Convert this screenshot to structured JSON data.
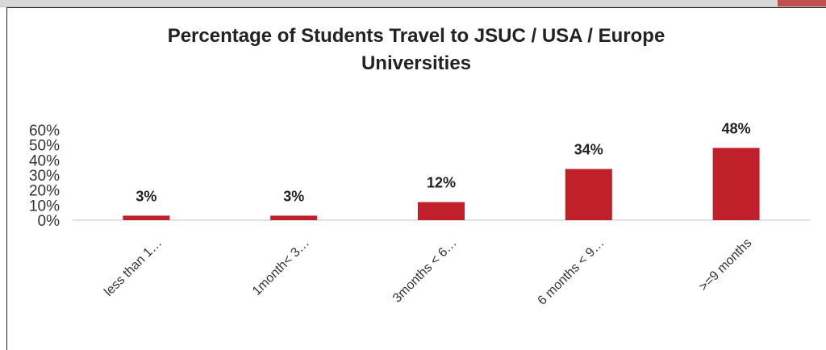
{
  "chart_data": {
    "type": "bar",
    "title_lines": [
      "Percentage of Students Travel to JSUC / USA / Europe",
      "Universities"
    ],
    "categories": [
      "less than 1…",
      "1month< 3…",
      "3months < 6…",
      "6 months < 9…",
      ">=9 months"
    ],
    "values": [
      3,
      3,
      12,
      34,
      48
    ],
    "data_labels": [
      "3%",
      "3%",
      "12%",
      "34%",
      "48%"
    ],
    "y_ticks": [
      "0%",
      "10%",
      "20%",
      "30%",
      "40%",
      "50%",
      "60%"
    ],
    "ylim": [
      0,
      60
    ],
    "grid": false,
    "bar_color": "#c0202a",
    "xlabel": "",
    "ylabel": ""
  }
}
